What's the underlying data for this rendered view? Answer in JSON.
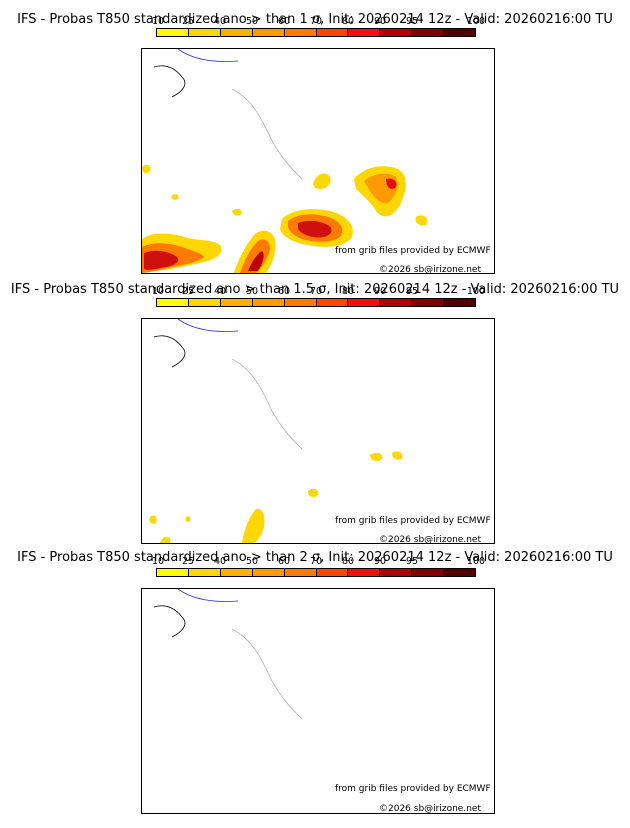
{
  "colorbar": {
    "ticks": [
      "10",
      "25",
      "40",
      "50",
      "60",
      "70",
      "80",
      "90",
      "95",
      "100"
    ],
    "colors": [
      "#ffff00",
      "#ffd700",
      "#ffb000",
      "#ff9a00",
      "#ff7a00",
      "#ff4500",
      "#f01010",
      "#b00000",
      "#800000",
      "#500000"
    ]
  },
  "credits": {
    "source": "from grib files provided by ECMWF",
    "copyright": "©2026 sb@irizone.net"
  },
  "panels": [
    {
      "title": "IFS - Probas T850  standardized ano > than 1 σ, Init: 20260214 12z - Valid: 20260216:00 TU",
      "sigma": 1
    },
    {
      "title": "IFS - Probas T850  standardized ano > than 1.5 σ, Init: 20260214 12z - Valid: 20260216:00 TU",
      "sigma": 1.5
    },
    {
      "title": "IFS - Probas T850  standardized ano > than 2 σ, Init: 20260214 12z - Valid: 20260216:00 TU",
      "sigma": 2
    }
  ]
}
